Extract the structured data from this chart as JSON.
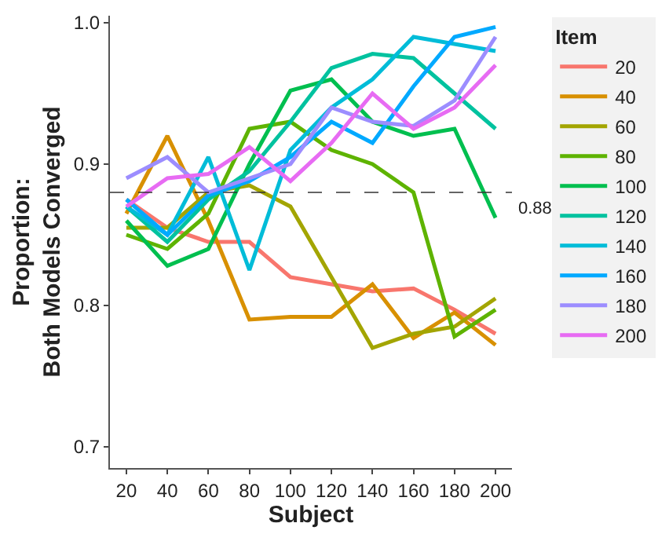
{
  "chart_data": {
    "type": "line",
    "xlabel": "Subject",
    "ylabel": "Proportion:\nBoth Models Converged",
    "legend_title": "Item",
    "legend": "right",
    "x": [
      20,
      40,
      60,
      80,
      100,
      120,
      140,
      160,
      180,
      200
    ],
    "xlim": [
      12,
      208
    ],
    "xticks": [
      20,
      40,
      60,
      80,
      100,
      120,
      140,
      160,
      180,
      200
    ],
    "ylim": [
      0.685,
      1.005
    ],
    "yticks": [
      0.7,
      0.8,
      0.9,
      {
        "value": 1.0,
        "label": "1.0"
      }
    ],
    "ref_lines": [
      {
        "axis": "y",
        "value": 0.88,
        "label": "0.88",
        "color": "#333333",
        "line_style": "dashed"
      }
    ],
    "series": [
      {
        "name": "20",
        "color": "#f8766d",
        "values": [
          0.875,
          0.855,
          0.845,
          0.845,
          0.82,
          0.815,
          0.81,
          0.812,
          0.797,
          0.78
        ]
      },
      {
        "name": "40",
        "color": "#d89000",
        "values": [
          0.865,
          0.92,
          0.86,
          0.79,
          0.792,
          0.792,
          0.815,
          0.777,
          0.795,
          0.772
        ]
      },
      {
        "name": "60",
        "color": "#a3a500",
        "values": [
          0.855,
          0.855,
          0.88,
          0.885,
          0.87,
          0.82,
          0.77,
          0.78,
          0.785,
          0.805
        ]
      },
      {
        "name": "80",
        "color": "#5eb300",
        "values": [
          0.85,
          0.84,
          0.865,
          0.925,
          0.93,
          0.91,
          0.9,
          0.88,
          0.778,
          0.797
        ]
      },
      {
        "name": "100",
        "color": "#00bf4f",
        "values": [
          0.86,
          0.828,
          0.84,
          0.9,
          0.952,
          0.96,
          0.93,
          0.92,
          0.925,
          0.862
        ]
      },
      {
        "name": "120",
        "color": "#00c29f",
        "values": [
          0.87,
          0.845,
          0.875,
          0.895,
          0.93,
          0.968,
          0.978,
          0.975,
          0.95,
          0.925
        ]
      },
      {
        "name": "140",
        "color": "#00bcd8",
        "values": [
          0.87,
          0.85,
          0.905,
          0.825,
          0.91,
          0.94,
          0.96,
          0.99,
          0.985,
          0.98
        ]
      },
      {
        "name": "160",
        "color": "#00a9ff",
        "values": [
          0.875,
          0.85,
          0.878,
          0.888,
          0.905,
          0.93,
          0.915,
          0.955,
          0.99,
          0.997
        ]
      },
      {
        "name": "180",
        "color": "#9c8dff",
        "values": [
          0.89,
          0.905,
          0.88,
          0.89,
          0.9,
          0.94,
          0.93,
          0.927,
          0.945,
          0.99
        ]
      },
      {
        "name": "200",
        "color": "#e76bf3",
        "values": [
          0.87,
          0.89,
          0.893,
          0.912,
          0.888,
          0.915,
          0.95,
          0.925,
          0.94,
          0.97
        ]
      }
    ]
  }
}
